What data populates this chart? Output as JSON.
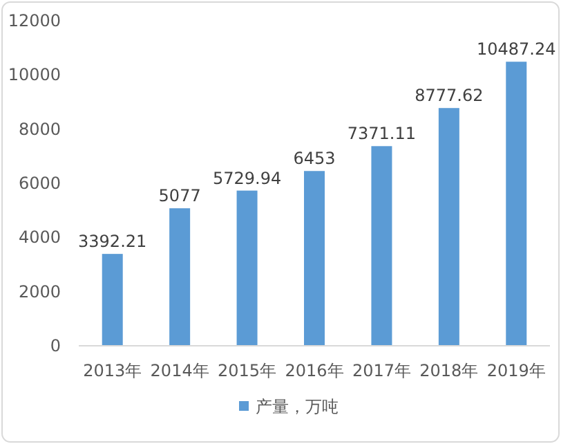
{
  "chart_data": {
    "type": "bar",
    "categories": [
      "2013年",
      "2014年",
      "2015年",
      "2016年",
      "2017年",
      "2018年",
      "2019年"
    ],
    "series": [
      {
        "name": "产量，万吨",
        "color": "#5b9bd5",
        "values": [
          3392.21,
          5077,
          5729.94,
          6453,
          7371.11,
          8777.62,
          10487.24
        ]
      }
    ],
    "ylim": [
      0,
      12000
    ],
    "yticks": [
      0,
      2000,
      4000,
      6000,
      8000,
      10000,
      12000
    ],
    "data_labels": true,
    "legend": "bottom"
  }
}
